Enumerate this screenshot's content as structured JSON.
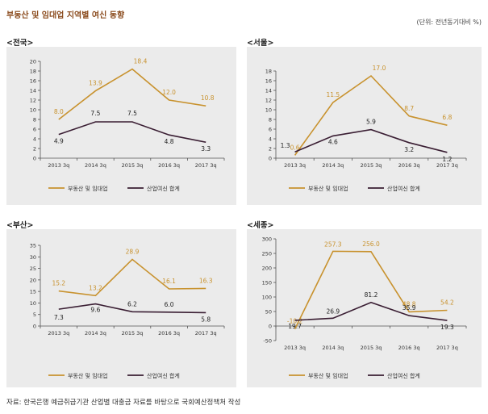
{
  "page": {
    "title": "부동산 및 임대업 지역별 여신 동향",
    "unit": "(단위: 전년동기대비 %)",
    "source": "자료: 한국은행 예금취급기관 산업별 대출금 자료를 바탕으로 국회예산정책처 작성"
  },
  "colors": {
    "series1": "#c8922e",
    "series2": "#3a1e33"
  },
  "chart_data": [
    {
      "type": "line",
      "label": "<전국>",
      "categories": [
        "2013 3q",
        "2014 3q",
        "2015 3q",
        "2016 3q",
        "2017 3q"
      ],
      "ylim": [
        0,
        20
      ],
      "yticks": [
        0,
        2,
        4,
        6,
        8,
        10,
        12,
        14,
        16,
        18,
        20
      ],
      "series": [
        {
          "name": "부동산 및 임대업",
          "values": [
            8.0,
            13.9,
            18.4,
            12.0,
            10.8
          ],
          "labels": [
            "8.0",
            "13.9",
            "18.4",
            "12.0",
            "10.8"
          ]
        },
        {
          "name": "산업여신 합계",
          "values": [
            4.9,
            7.5,
            7.5,
            4.8,
            3.3
          ],
          "labels": [
            "4.9",
            "7.5",
            "7.5",
            "4.8",
            "3.3"
          ]
        }
      ]
    },
    {
      "type": "line",
      "label": "<서울>",
      "categories": [
        "2013 3q",
        "2014 3q",
        "2015 3q",
        "2016 3q",
        "2017 3q"
      ],
      "ylim": [
        0,
        18
      ],
      "yticks": [
        0,
        2,
        4,
        6,
        8,
        10,
        12,
        14,
        16,
        18
      ],
      "series": [
        {
          "name": "부동산 및 임대업",
          "values": [
            0.6,
            11.5,
            17.0,
            8.7,
            6.8
          ],
          "labels": [
            "0.6",
            "11.5",
            "17.0",
            "8.7",
            "6.8"
          ]
        },
        {
          "name": "산업여신 합계",
          "values": [
            1.3,
            4.6,
            5.9,
            3.2,
            1.2
          ],
          "labels": [
            "1.3",
            "4.6",
            "5.9",
            "3.2",
            "1.2"
          ]
        }
      ]
    },
    {
      "type": "line",
      "label": "<부산>",
      "categories": [
        "2013 3q",
        "2014 3q",
        "2015 3q",
        "2016 3q",
        "2017 3q"
      ],
      "ylim": [
        0,
        35
      ],
      "yticks": [
        0,
        5,
        10,
        15,
        20,
        25,
        30,
        35
      ],
      "series": [
        {
          "name": "부동산 및 임대업",
          "values": [
            15.2,
            13.2,
            28.9,
            16.1,
            16.3
          ],
          "labels": [
            "15.2",
            "13.2",
            "28.9",
            "16.1",
            "16.3"
          ]
        },
        {
          "name": "산업여신 합계",
          "values": [
            7.3,
            9.6,
            6.2,
            6.0,
            5.8
          ],
          "labels": [
            "7.3",
            "9.6",
            "6.2",
            "6.0",
            "5.8"
          ]
        }
      ]
    },
    {
      "type": "line",
      "label": "<세종>",
      "categories": [
        "2013 3q",
        "2014 3q",
        "2015 3q",
        "2016 3q",
        "2017 3q"
      ],
      "ylim": [
        -50,
        300
      ],
      "yticks": [
        -50,
        0,
        50,
        100,
        150,
        200,
        250,
        300
      ],
      "series": [
        {
          "name": "부동산 및 임대업",
          "values": [
            -10.2,
            257.3,
            256.0,
            48.8,
            54.2
          ],
          "labels": [
            "-10.2",
            "257.3",
            "256.0",
            "48.8",
            "54.2"
          ]
        },
        {
          "name": "산업여신 합계",
          "values": [
            19.7,
            26.9,
            81.2,
            35.9,
            19.3
          ],
          "labels": [
            "19.7",
            "26.9",
            "81.2",
            "35.9",
            "19.3"
          ]
        }
      ]
    }
  ]
}
